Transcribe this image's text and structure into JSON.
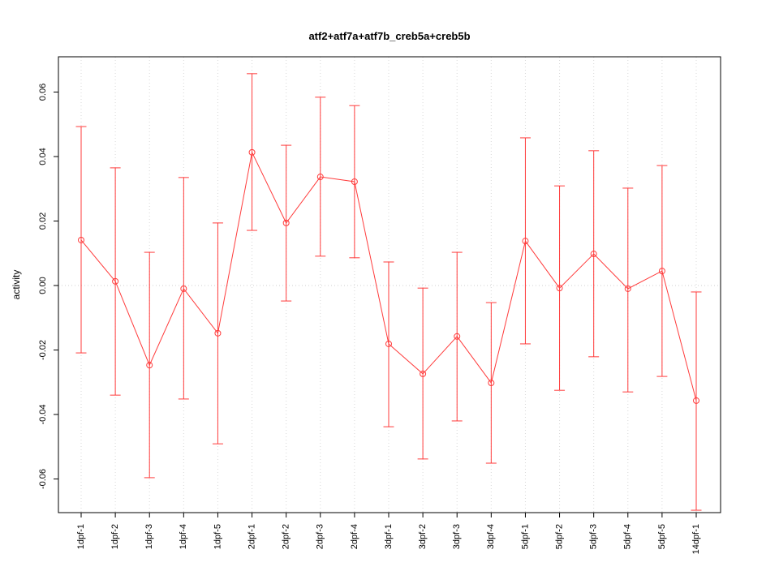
{
  "chart_data": {
    "type": "line",
    "title": "atf2+atf7a+atf7b_creb5a+creb5b",
    "ylabel": "activity",
    "xlabel": "",
    "categories": [
      "1dpf-1",
      "1dpf-2",
      "1dpf-3",
      "1dpf-4",
      "1dpf-5",
      "2dpf-1",
      "2dpf-2",
      "2dpf-3",
      "2dpf-4",
      "3dpf-1",
      "3dpf-2",
      "3dpf-3",
      "3dpf-4",
      "5dpf-1",
      "5dpf-2",
      "5dpf-3",
      "5dpf-4",
      "5dpf-5",
      "14dpf-1"
    ],
    "series": [
      {
        "name": "activity",
        "values": [
          0.0141,
          0.0013,
          -0.0247,
          -0.001,
          -0.0148,
          0.0413,
          0.0194,
          0.0337,
          0.0322,
          -0.0181,
          -0.0274,
          -0.0158,
          -0.0302,
          0.0138,
          -0.0008,
          0.0098,
          -0.001,
          0.0045,
          -0.0357
        ],
        "upper": [
          0.0493,
          0.0365,
          0.0103,
          0.0335,
          0.0194,
          0.0657,
          0.0435,
          0.0584,
          0.0558,
          0.0073,
          -0.0008,
          0.0103,
          -0.0053,
          0.0458,
          0.0309,
          0.0418,
          0.0302,
          0.0372,
          -0.002
        ],
        "lower": [
          -0.0209,
          -0.034,
          -0.0596,
          -0.0352,
          -0.0491,
          0.0171,
          -0.0048,
          0.0091,
          0.0086,
          -0.0438,
          -0.0538,
          -0.042,
          -0.0551,
          -0.0181,
          -0.0325,
          -0.0221,
          -0.033,
          -0.0282,
          -0.0697
        ]
      }
    ],
    "yticks": [
      -0.06,
      -0.04,
      -0.02,
      0,
      0.02,
      0.04,
      0.06
    ],
    "ytick_labels": [
      "-0.06",
      "-0.04",
      "-0.02",
      "0.00",
      "0.02",
      "0.04",
      "0.06"
    ],
    "ylim": [
      -0.0755,
      0.071
    ],
    "grid": "dotted vertical gridlines at each category; dotted horizontal line at y=0",
    "legend": "none",
    "colors": {
      "series": "#ff3b3b",
      "grid": "#d8d8d8",
      "zero_line": "#cfcfcf",
      "axis": "#000000",
      "title": "#000000"
    }
  }
}
